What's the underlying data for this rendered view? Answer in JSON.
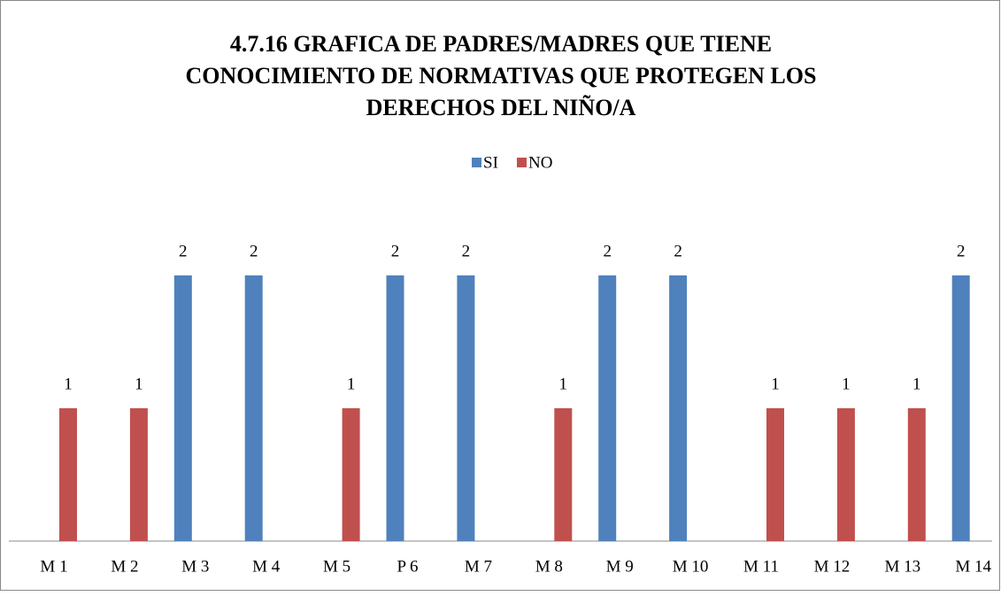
{
  "chart_data": {
    "type": "bar",
    "title": [
      "4.7.16 GRAFICA DE PADRES/MADRES QUE TIENE",
      "CONOCIMIENTO DE NORMATIVAS QUE PROTEGEN LOS",
      "DERECHOS DEL NIÑO/A"
    ],
    "categories": [
      "M 1",
      "M 2",
      "M 3",
      "M 4",
      "M 5",
      "P 6",
      "M 7",
      "M 8",
      "M 9",
      "M 10",
      "M 11",
      "M 12",
      "M 13",
      "M 14"
    ],
    "series": [
      {
        "name": "SI",
        "color": "#4f81bd",
        "values": [
          null,
          null,
          2,
          2,
          null,
          2,
          2,
          null,
          2,
          2,
          null,
          null,
          null,
          2
        ]
      },
      {
        "name": "NO",
        "color": "#c0504d",
        "values": [
          1,
          1,
          null,
          null,
          1,
          null,
          null,
          1,
          null,
          null,
          1,
          1,
          1,
          null
        ]
      }
    ],
    "ylim": [
      0,
      2.5
    ],
    "legend": "top",
    "data_labels": true
  }
}
